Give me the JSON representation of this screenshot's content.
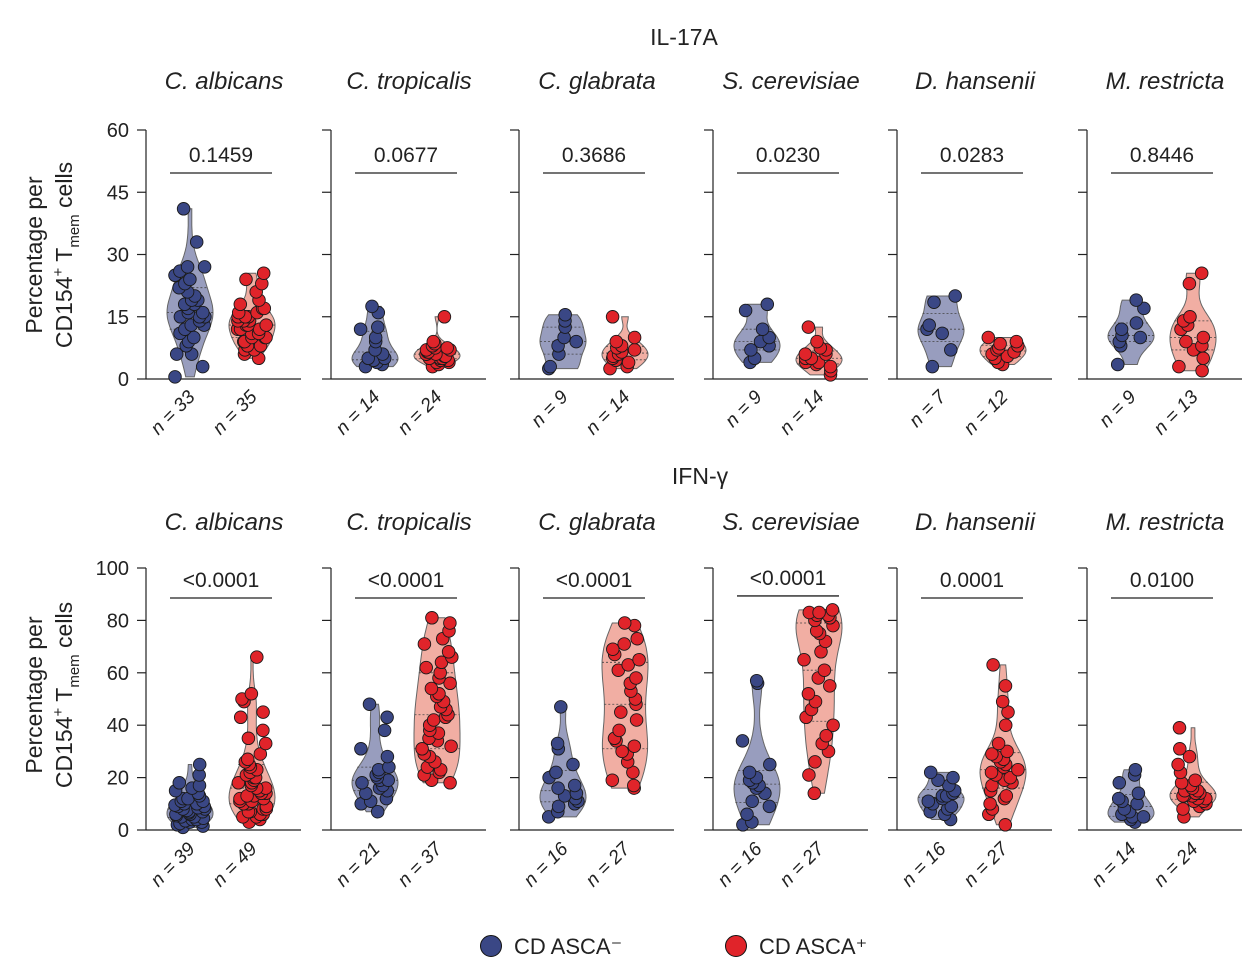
{
  "colors": {
    "neg": "#3a4785",
    "neg_violin": "#8d93b8",
    "pos": "#e0242a",
    "pos_violin": "#f0a69a"
  },
  "legend": {
    "neg_label": "CD ASCA⁻",
    "pos_label": "CD ASCA⁺"
  },
  "ylabel": {
    "line1": "Percentage per",
    "line2_prefix": "CD154",
    "line2_sup": "+",
    "line2_mid": " T",
    "line2_sub": "mem",
    "line2_suffix": " cells"
  },
  "chart_data": [
    {
      "type": "scatter",
      "title": "IL-17A",
      "ylim": [
        0,
        60
      ],
      "yticks": [
        0,
        15,
        30,
        45,
        60
      ],
      "series_names": [
        "CD ASCA⁻",
        "CD ASCA⁺"
      ],
      "panels": [
        {
          "species": "C. albicans",
          "p_value": "0.1459",
          "n_labels": [
            "n = 33",
            "n = 35"
          ],
          "neg": [
            0.5,
            3,
            6,
            6,
            8,
            9,
            10,
            11,
            12,
            13,
            13,
            14,
            15,
            15,
            15,
            16,
            16,
            17,
            18,
            18,
            19,
            19,
            20,
            21,
            22,
            23,
            24,
            25,
            26,
            27,
            27,
            33,
            41
          ],
          "pos": [
            5,
            6,
            7,
            7,
            8,
            8,
            9,
            9,
            10,
            10,
            10,
            11,
            11,
            12,
            12,
            12,
            13,
            13,
            13,
            14,
            14,
            14,
            15,
            15,
            15,
            16,
            16,
            17,
            17,
            18,
            19,
            21,
            23,
            24,
            25.5
          ]
        },
        {
          "species": "C. tropicalis",
          "p_value": "0.0677",
          "n_labels": [
            "n = 14",
            "n = 24"
          ],
          "neg": [
            3,
            3.5,
            4,
            4.5,
            5,
            5,
            6,
            7,
            9,
            10,
            12,
            12.5,
            16,
            17.5
          ],
          "pos": [
            3,
            3.5,
            4,
            4,
            4.5,
            4.5,
            5,
            5,
            5,
            5.5,
            5.5,
            6,
            6,
            6,
            6.5,
            6.5,
            7,
            7,
            7.5,
            7.5,
            8,
            8.5,
            9,
            15
          ]
        },
        {
          "species": "C. glabrata",
          "p_value": "0.3686",
          "n_labels": [
            "n = 9",
            "n = 14"
          ],
          "neg": [
            2.5,
            3,
            6,
            8,
            9,
            10,
            12.5,
            14,
            15.5
          ],
          "pos": [
            2.5,
            3,
            4,
            4.5,
            5,
            5.5,
            6,
            6.5,
            7,
            7.5,
            8,
            9,
            10,
            15
          ]
        },
        {
          "species": "S. cerevisiae",
          "p_value": "0.0230",
          "n_labels": [
            "n = 9",
            "n = 14"
          ],
          "neg": [
            4,
            5,
            7,
            8,
            9,
            10,
            12,
            16.5,
            18
          ],
          "pos": [
            1,
            2,
            3,
            3.5,
            4,
            4,
            5,
            5,
            6,
            6,
            7,
            7.5,
            9,
            12.5
          ]
        },
        {
          "species": "D. hansenii",
          "p_value": "0.0283",
          "n_labels": [
            "n = 7",
            "n = 12"
          ],
          "neg": [
            3,
            7,
            11,
            12,
            13,
            18.5,
            20
          ],
          "pos": [
            3.5,
            4,
            5,
            5.5,
            6,
            6.5,
            7,
            7.5,
            8,
            8.5,
            9,
            10
          ]
        },
        {
          "species": "M. restricta",
          "p_value": "0.8446",
          "n_labels": [
            "n = 9",
            "n = 13"
          ],
          "neg": [
            3.5,
            8,
            9,
            10,
            10.5,
            12,
            13.5,
            17,
            19
          ],
          "pos": [
            2,
            3,
            5,
            7,
            8,
            9,
            10,
            12,
            13,
            14,
            15,
            23,
            25.5
          ]
        }
      ]
    },
    {
      "type": "scatter",
      "title": "IFN-γ",
      "ylim": [
        0,
        100
      ],
      "yticks": [
        0,
        20,
        40,
        60,
        80,
        100
      ],
      "series_names": [
        "CD ASCA⁻",
        "CD ASCA⁺"
      ],
      "panels": [
        {
          "species": "C. albicans",
          "p_value": "<0.0001",
          "n_labels": [
            "n = 39",
            "n = 49"
          ],
          "neg": [
            1,
            1.5,
            2,
            2.5,
            3,
            3,
            3.5,
            4,
            4,
            4.5,
            5,
            5,
            5.5,
            6,
            6,
            6.5,
            7,
            7,
            7.5,
            8,
            8,
            8.5,
            9,
            9,
            9.5,
            10,
            10,
            11,
            11,
            12,
            12,
            13,
            14,
            15,
            16,
            17,
            18,
            21,
            25
          ],
          "pos": [
            3,
            4,
            5,
            5,
            6,
            6,
            7,
            7,
            8,
            8,
            9,
            9,
            10,
            10,
            11,
            11,
            12,
            12,
            13,
            13,
            14,
            14,
            15,
            15,
            16,
            16,
            17,
            18,
            18,
            19,
            20,
            20,
            21,
            22,
            23,
            24,
            25,
            26,
            27,
            29,
            33,
            35,
            38,
            43,
            45,
            49,
            50,
            52,
            66
          ]
        },
        {
          "species": "C. tropicalis",
          "p_value": "<0.0001",
          "n_labels": [
            "n = 21",
            "n = 37"
          ],
          "neg": [
            7,
            10,
            11,
            12,
            14,
            15,
            16,
            17,
            18,
            19,
            19,
            20,
            21,
            22,
            23,
            24,
            28,
            31,
            38,
            43,
            48
          ],
          "pos": [
            18,
            19,
            21,
            22,
            23,
            24,
            26,
            28,
            29,
            31,
            32,
            34,
            35,
            37,
            38,
            40,
            42,
            43,
            44,
            46,
            47,
            49,
            51,
            52,
            54,
            56,
            58,
            60,
            62,
            64,
            66,
            68,
            71,
            73,
            76,
            79,
            81
          ]
        },
        {
          "species": "C. glabrata",
          "p_value": "<0.0001",
          "n_labels": [
            "n = 16",
            "n = 27"
          ],
          "neg": [
            5,
            7,
            9,
            10,
            11,
            12,
            13,
            14,
            16,
            17,
            20,
            22,
            25,
            31,
            33,
            47
          ],
          "pos": [
            16,
            17,
            19,
            22,
            26,
            29,
            30,
            32,
            34,
            35,
            38,
            42,
            45,
            48,
            50,
            53,
            56,
            58,
            61,
            63,
            65,
            67,
            69,
            71,
            73,
            78,
            79
          ]
        },
        {
          "species": "S. cerevisiae",
          "p_value": "<0.0001",
          "n_labels": [
            "n = 16",
            "n = 27"
          ],
          "neg": [
            2,
            3,
            6,
            9,
            11,
            14,
            16,
            17,
            18,
            19,
            20,
            22,
            25,
            34,
            56,
            57
          ],
          "pos": [
            14,
            21,
            26,
            30,
            33,
            36,
            40,
            43,
            46,
            49,
            52,
            55,
            58,
            61,
            65,
            68,
            72,
            75,
            76,
            78,
            80,
            81,
            82,
            82,
            83,
            83,
            84
          ]
        },
        {
          "species": "D. hansenii",
          "p_value": "0.0001",
          "n_labels": [
            "n = 16",
            "n = 27"
          ],
          "neg": [
            4,
            6,
            7,
            8,
            9,
            10,
            11,
            12,
            13,
            13,
            14,
            15,
            17,
            19,
            20,
            22
          ],
          "pos": [
            2,
            6,
            8,
            10,
            12,
            13,
            15,
            17,
            18,
            19,
            20,
            21,
            22,
            23,
            24,
            25,
            26,
            27,
            28,
            29,
            30,
            33,
            40,
            45,
            49,
            55,
            63
          ]
        },
        {
          "species": "M. restricta",
          "p_value": "0.0100",
          "n_labels": [
            "n = 14",
            "n = 24"
          ],
          "neg": [
            3,
            4,
            5,
            5,
            6,
            7,
            8,
            10,
            11,
            12,
            14,
            18,
            21,
            23
          ],
          "pos": [
            5,
            8,
            9,
            10,
            11,
            11,
            12,
            12,
            13,
            13,
            13,
            14,
            14,
            15,
            15,
            16,
            17,
            18,
            19,
            22,
            25,
            28,
            31,
            39
          ]
        }
      ]
    }
  ]
}
